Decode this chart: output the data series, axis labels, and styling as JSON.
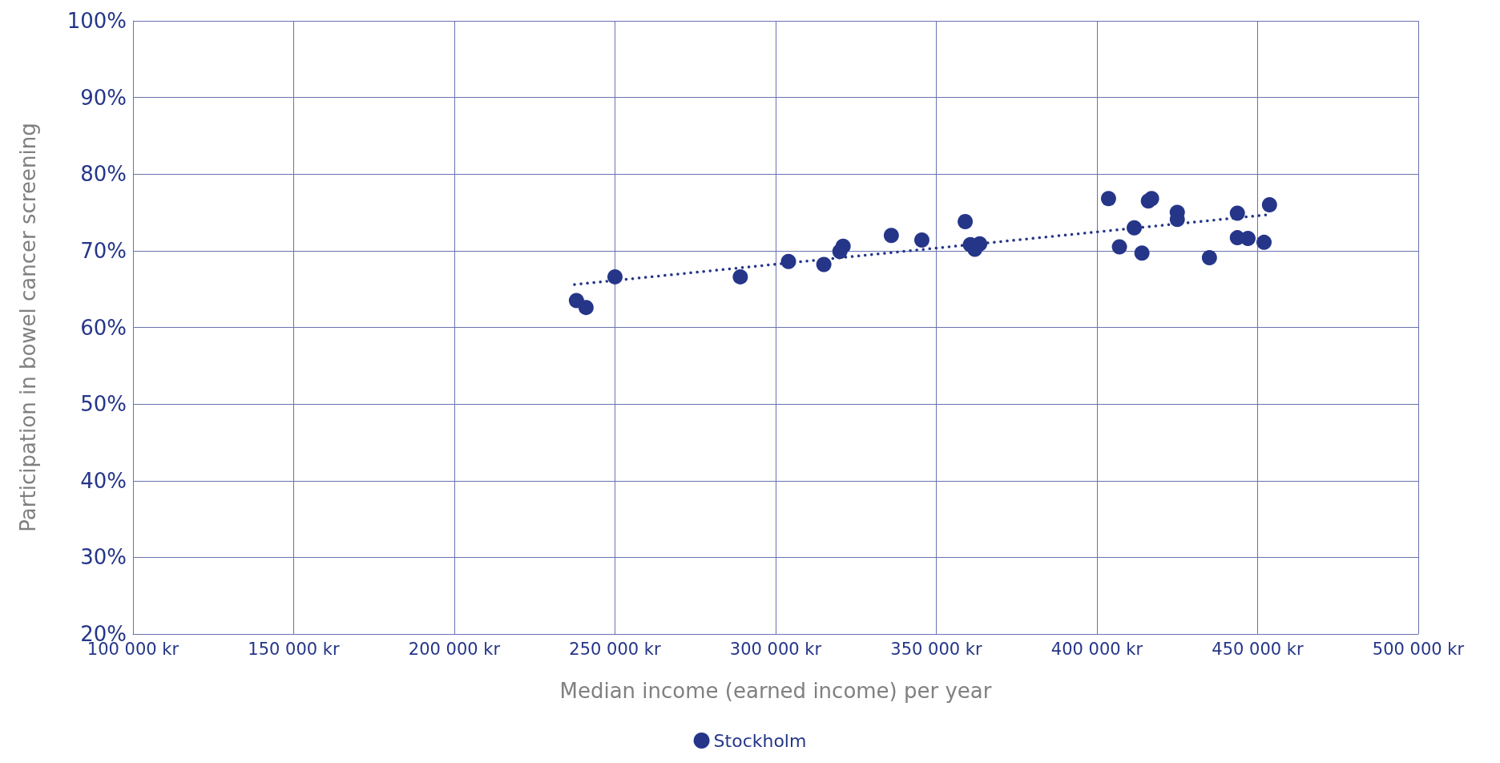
{
  "chart_data": {
    "type": "scatter",
    "xlabel": "Median income (earned income) per year",
    "ylabel": "Participation in bowel cancer screening",
    "xlim": [
      100000,
      500000
    ],
    "xticks": [
      {
        "value": 100000,
        "label": "100 000 kr"
      },
      {
        "value": 150000,
        "label": "150 000 kr"
      },
      {
        "value": 200000,
        "label": "200 000 kr"
      },
      {
        "value": 250000,
        "label": "250 000 kr"
      },
      {
        "value": 300000,
        "label": "300 000 kr"
      },
      {
        "value": 350000,
        "label": "350 000 kr"
      },
      {
        "value": 400000,
        "label": "400 000 kr"
      },
      {
        "value": 450000,
        "label": "450 000 kr"
      },
      {
        "value": 500000,
        "label": "500 000 kr"
      }
    ],
    "ylim": [
      20,
      100
    ],
    "yticks": [
      {
        "value": 20,
        "label": "20%"
      },
      {
        "value": 30,
        "label": "30%"
      },
      {
        "value": 40,
        "label": "40%"
      },
      {
        "value": 50,
        "label": "50%"
      },
      {
        "value": 60,
        "label": "60%"
      },
      {
        "value": 70,
        "label": "70%"
      },
      {
        "value": 80,
        "label": "80%"
      },
      {
        "value": 90,
        "label": "90%"
      },
      {
        "value": 100,
        "label": "100%"
      }
    ],
    "grid": true,
    "legend": "bottom",
    "marker": "circle",
    "series": [
      {
        "name": "Stockholm",
        "color": "#253689",
        "x": [
          238000,
          241000,
          250000,
          289000,
          304000,
          315000,
          320000,
          321000,
          336000,
          345500,
          359000,
          360600,
          362000,
          363500,
          403600,
          407000,
          411600,
          414000,
          416000,
          417000,
          425000,
          425000,
          435000,
          443700,
          443700,
          447000,
          452000,
          453700
        ],
        "values": [
          63.5,
          62.6,
          66.6,
          66.6,
          68.6,
          68.2,
          69.9,
          70.6,
          72.0,
          71.4,
          73.8,
          70.8,
          70.2,
          70.9,
          76.8,
          70.5,
          73.0,
          69.7,
          76.5,
          76.8,
          75.0,
          74.1,
          69.1,
          74.9,
          71.7,
          71.6,
          71.1,
          76.0
        ]
      },
      {
        "type": "line",
        "color": "#253689",
        "line_style": "dotted",
        "marker": "none",
        "x": [
          237400,
          453000
        ],
        "values": [
          65.6,
          74.7
        ]
      }
    ]
  }
}
